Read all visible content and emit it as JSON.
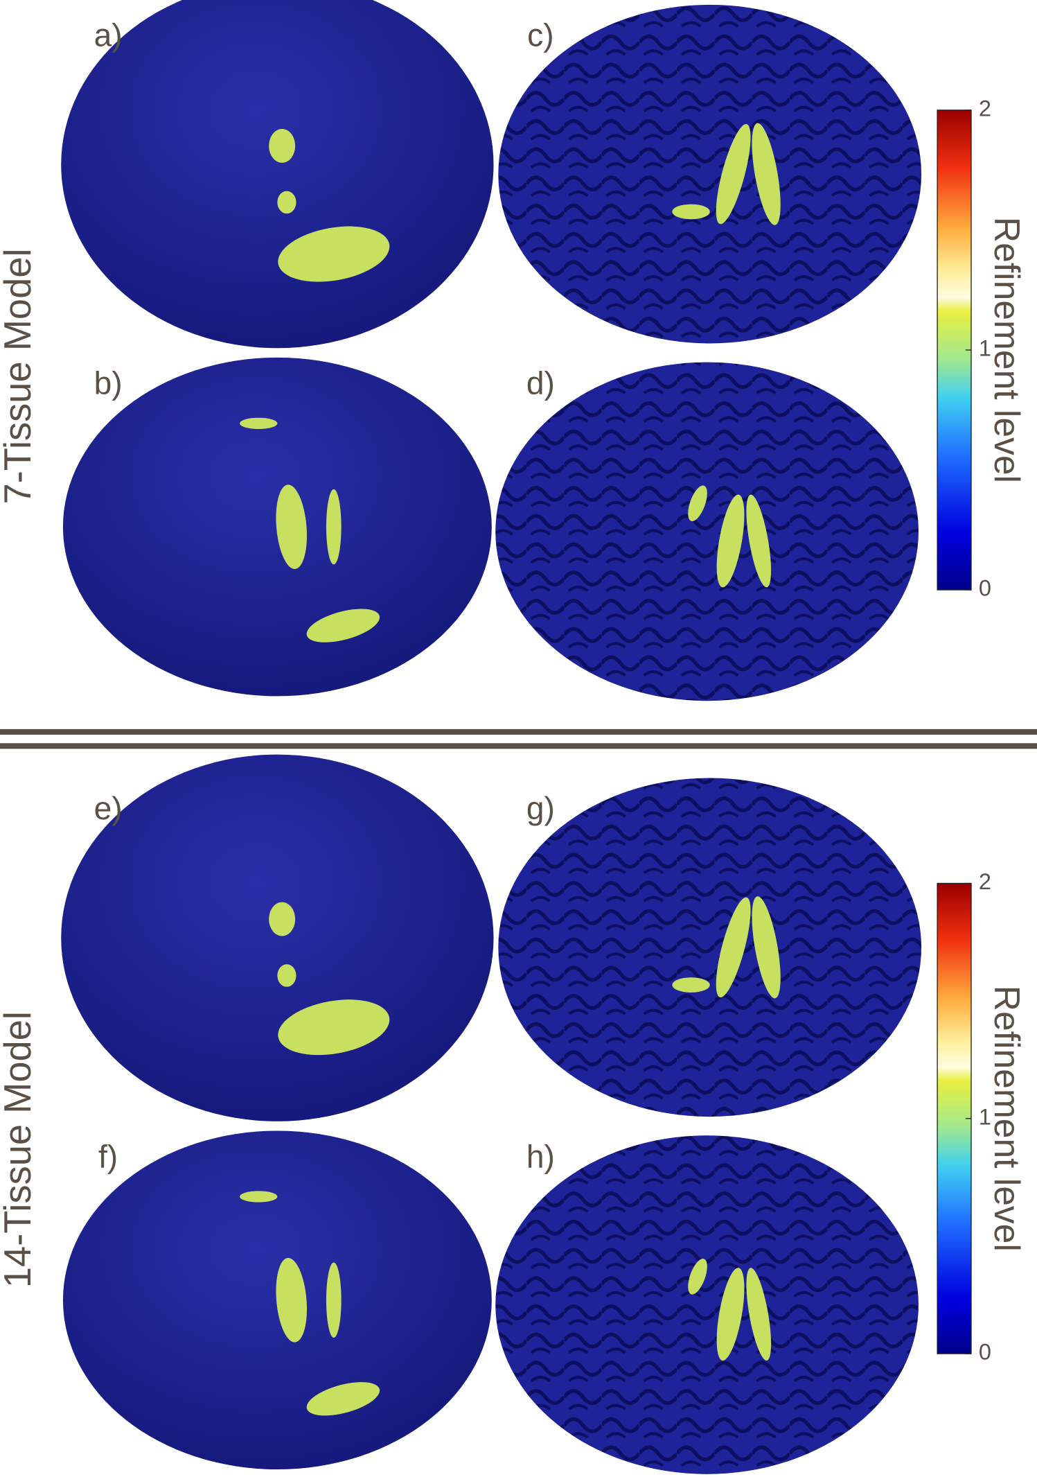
{
  "sections": [
    {
      "model_label": "7-Tissue Model",
      "panels": [
        "a)",
        "b)",
        "c)",
        "d)"
      ],
      "colorbar": {
        "label": "Refinement level",
        "ticks": [
          0,
          1,
          2
        ]
      }
    },
    {
      "model_label": "14-Tissue Model",
      "panels": [
        "e)",
        "f)",
        "g)",
        "h)"
      ],
      "colorbar": {
        "label": "Refinement level",
        "ticks": [
          0,
          1,
          2
        ]
      }
    }
  ]
}
